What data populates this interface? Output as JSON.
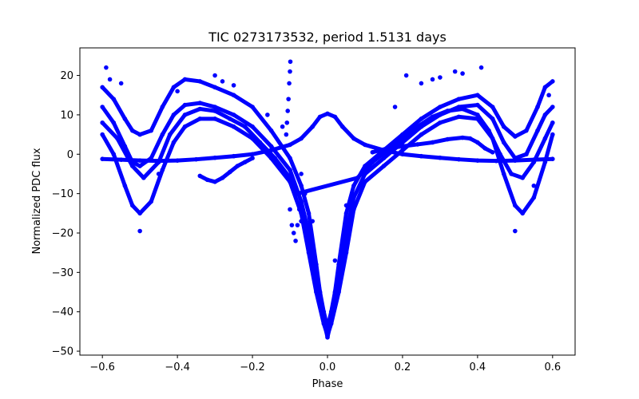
{
  "chart_data": {
    "type": "scatter",
    "title": "TIC 0273173532, period 1.5131 days",
    "xlabel": "Phase",
    "ylabel": "Normalized PDC flux",
    "xlim": [
      -0.66,
      0.66
    ],
    "ylim": [
      -51,
      27
    ],
    "xticks": [
      -0.6,
      -0.4,
      -0.2,
      0.0,
      0.2,
      0.4,
      0.6
    ],
    "xtick_labels": [
      "−0.6",
      "−0.4",
      "−0.2",
      "0.0",
      "0.2",
      "0.4",
      "0.6"
    ],
    "yticks": [
      -50,
      -40,
      -30,
      -20,
      -10,
      0,
      10,
      20
    ],
    "ytick_labels": [
      "−50",
      "−40",
      "−30",
      "−20",
      "−10",
      "0",
      "10",
      "20"
    ],
    "grid": false,
    "marker_color": "#0000ff",
    "series": [
      {
        "points": [
          [
            -0.6,
            -1.2
          ],
          [
            -0.55,
            -1.4
          ],
          [
            -0.5,
            -1.6
          ],
          [
            -0.45,
            -1.7
          ],
          [
            -0.4,
            -1.6
          ],
          [
            -0.35,
            -1.3
          ],
          [
            -0.3,
            -0.9
          ],
          [
            -0.25,
            -0.5
          ],
          [
            -0.2,
            0.0
          ],
          [
            -0.15,
            1.0
          ],
          [
            -0.1,
            2.4
          ],
          [
            -0.07,
            4.0
          ],
          [
            -0.04,
            7.0
          ],
          [
            -0.02,
            9.5
          ],
          [
            0.0,
            10.3
          ],
          [
            0.02,
            9.5
          ],
          [
            0.04,
            7.0
          ],
          [
            0.07,
            4.0
          ],
          [
            0.1,
            2.4
          ],
          [
            0.15,
            1.0
          ],
          [
            0.2,
            0.0
          ],
          [
            0.25,
            -0.5
          ],
          [
            0.3,
            -0.9
          ],
          [
            0.35,
            -1.3
          ],
          [
            0.4,
            -1.6
          ],
          [
            0.45,
            -1.7
          ],
          [
            0.5,
            -1.6
          ],
          [
            0.55,
            -1.4
          ],
          [
            0.6,
            -1.2
          ]
        ]
      },
      {
        "points": [
          [
            -0.6,
            17.0
          ],
          [
            -0.57,
            14.0
          ],
          [
            -0.54,
            9.0
          ],
          [
            -0.52,
            6.0
          ],
          [
            -0.5,
            5.0
          ],
          [
            -0.47,
            6.0
          ],
          [
            -0.44,
            12.0
          ],
          [
            -0.41,
            17.0
          ],
          [
            -0.38,
            19.0
          ],
          [
            -0.34,
            18.5
          ],
          [
            -0.3,
            17.0
          ],
          [
            -0.25,
            15.0
          ],
          [
            -0.2,
            12.0
          ],
          [
            -0.15,
            6.0
          ],
          [
            -0.1,
            -1.0
          ],
          [
            -0.07,
            -8.0
          ],
          [
            -0.05,
            -15.0
          ],
          [
            -0.03,
            -28.0
          ],
          [
            -0.02,
            -35.0
          ],
          [
            -0.01,
            -42.0
          ],
          [
            0.0,
            -46.5
          ],
          [
            0.01,
            -42.0
          ],
          [
            0.02,
            -35.0
          ],
          [
            0.03,
            -28.0
          ],
          [
            0.05,
            -15.0
          ],
          [
            0.07,
            -8.0
          ],
          [
            0.1,
            -3.0
          ],
          [
            0.15,
            1.0
          ],
          [
            0.2,
            5.0
          ],
          [
            0.25,
            9.0
          ],
          [
            0.3,
            12.0
          ],
          [
            0.35,
            14.0
          ],
          [
            0.4,
            15.0
          ],
          [
            0.44,
            12.0
          ],
          [
            0.47,
            7.0
          ],
          [
            0.5,
            4.5
          ],
          [
            0.53,
            6.0
          ],
          [
            0.56,
            12.0
          ],
          [
            0.58,
            17.0
          ],
          [
            0.6,
            18.5
          ]
        ]
      },
      {
        "points": [
          [
            -0.6,
            12.0
          ],
          [
            -0.57,
            8.0
          ],
          [
            -0.54,
            2.0
          ],
          [
            -0.52,
            -2.0
          ],
          [
            -0.5,
            -3.0
          ],
          [
            -0.47,
            -1.0
          ],
          [
            -0.44,
            5.0
          ],
          [
            -0.41,
            10.0
          ],
          [
            -0.38,
            12.5
          ],
          [
            -0.34,
            13.0
          ],
          [
            -0.3,
            12.0
          ],
          [
            -0.25,
            10.0
          ],
          [
            -0.2,
            7.0
          ],
          [
            -0.15,
            2.0
          ],
          [
            -0.1,
            -4.0
          ],
          [
            -0.07,
            -12.0
          ],
          [
            -0.05,
            -20.0
          ],
          [
            -0.03,
            -30.0
          ],
          [
            -0.01,
            -40.0
          ],
          [
            0.0,
            -44.0
          ],
          [
            0.01,
            -40.0
          ],
          [
            0.03,
            -30.0
          ],
          [
            0.05,
            -20.0
          ],
          [
            0.07,
            -11.0
          ],
          [
            0.1,
            -5.0
          ],
          [
            0.15,
            -1.0
          ],
          [
            0.2,
            3.0
          ],
          [
            0.25,
            7.0
          ],
          [
            0.3,
            10.0
          ],
          [
            0.35,
            12.0
          ],
          [
            0.4,
            12.5
          ],
          [
            0.44,
            9.0
          ],
          [
            0.47,
            3.0
          ],
          [
            0.5,
            -1.0
          ],
          [
            0.53,
            0.0
          ],
          [
            0.56,
            6.0
          ],
          [
            0.58,
            10.0
          ],
          [
            0.6,
            12.0
          ]
        ]
      },
      {
        "points": [
          [
            -0.6,
            5.0
          ],
          [
            -0.57,
            0.0
          ],
          [
            -0.54,
            -8.0
          ],
          [
            -0.52,
            -13.0
          ],
          [
            -0.5,
            -15.0
          ],
          [
            -0.47,
            -12.0
          ],
          [
            -0.44,
            -4.0
          ],
          [
            -0.41,
            3.0
          ],
          [
            -0.38,
            7.0
          ],
          [
            -0.34,
            9.0
          ],
          [
            -0.3,
            9.0
          ],
          [
            -0.25,
            7.0
          ],
          [
            -0.2,
            4.0
          ],
          [
            -0.15,
            -1.0
          ],
          [
            -0.1,
            -7.0
          ],
          [
            -0.07,
            -15.0
          ],
          [
            -0.05,
            -25.0
          ],
          [
            -0.03,
            -35.0
          ],
          [
            -0.01,
            -43.0
          ],
          [
            0.0,
            -46.0
          ],
          [
            0.01,
            -43.0
          ],
          [
            0.03,
            -35.0
          ],
          [
            0.05,
            -25.0
          ],
          [
            0.07,
            -14.0
          ],
          [
            0.1,
            -7.0
          ],
          [
            0.15,
            -3.0
          ],
          [
            0.2,
            1.0
          ],
          [
            0.25,
            5.0
          ],
          [
            0.3,
            8.0
          ],
          [
            0.35,
            9.5
          ],
          [
            0.4,
            9.0
          ],
          [
            0.44,
            4.0
          ],
          [
            0.47,
            -5.0
          ],
          [
            0.5,
            -13.0
          ],
          [
            0.52,
            -15.0
          ],
          [
            0.55,
            -11.0
          ],
          [
            0.58,
            -2.0
          ],
          [
            0.6,
            5.0
          ]
        ]
      },
      {
        "points": [
          [
            -0.6,
            8.0
          ],
          [
            -0.56,
            4.0
          ],
          [
            -0.52,
            -3.0
          ],
          [
            -0.49,
            -6.0
          ],
          [
            -0.45,
            -2.0
          ],
          [
            -0.42,
            5.0
          ],
          [
            -0.38,
            10.0
          ],
          [
            -0.34,
            11.5
          ],
          [
            -0.3,
            11.0
          ],
          [
            -0.26,
            9.0
          ],
          [
            -0.22,
            7.0
          ],
          [
            -0.18,
            3.0
          ],
          [
            -0.14,
            -1.0
          ],
          [
            -0.1,
            -6.0
          ],
          [
            -0.08,
            -10.0
          ],
          [
            0.08,
            -6.0
          ],
          [
            0.12,
            -2.0
          ],
          [
            0.16,
            1.0
          ],
          [
            0.2,
            4.0
          ],
          [
            0.24,
            7.0
          ],
          [
            0.28,
            9.5
          ],
          [
            0.32,
            11.0
          ],
          [
            0.36,
            11.5
          ],
          [
            0.4,
            10.0
          ],
          [
            0.43,
            6.0
          ],
          [
            0.46,
            0.0
          ],
          [
            0.49,
            -5.0
          ],
          [
            0.52,
            -6.0
          ],
          [
            0.55,
            -2.0
          ],
          [
            0.58,
            4.0
          ],
          [
            0.6,
            8.0
          ]
        ]
      },
      {
        "points": [
          [
            -0.34,
            -5.5
          ],
          [
            -0.32,
            -6.5
          ],
          [
            -0.3,
            -7.0
          ],
          [
            -0.28,
            -6.0
          ],
          [
            -0.26,
            -4.5
          ],
          [
            -0.24,
            -3.0
          ],
          [
            -0.22,
            -2.0
          ],
          [
            -0.2,
            -1.0
          ]
        ]
      },
      {
        "points": [
          [
            0.12,
            0.5
          ],
          [
            0.16,
            1.5
          ],
          [
            0.2,
            2.0
          ],
          [
            0.24,
            2.5
          ],
          [
            0.28,
            3.0
          ],
          [
            0.32,
            3.8
          ],
          [
            0.36,
            4.2
          ],
          [
            0.38,
            4.0
          ],
          [
            0.4,
            3.0
          ],
          [
            0.42,
            1.5
          ],
          [
            0.44,
            0.5
          ]
        ]
      },
      {
        "points": [
          [
            -0.11,
            5.0
          ],
          [
            -0.108,
            8.0
          ],
          [
            -0.106,
            11.0
          ],
          [
            -0.104,
            14.0
          ],
          [
            -0.102,
            18.0
          ],
          [
            -0.1,
            21.0
          ],
          [
            -0.099,
            23.5
          ],
          [
            -0.1,
            -14.0
          ],
          [
            -0.095,
            -18.0
          ],
          [
            -0.09,
            -20.0
          ],
          [
            -0.085,
            -22.0
          ],
          [
            -0.08,
            -18.0
          ],
          [
            -0.075,
            -14.0
          ],
          [
            -0.07,
            -17.0
          ]
        ]
      },
      {
        "points": [
          [
            -0.59,
            22.0
          ],
          [
            -0.58,
            19.0
          ],
          [
            -0.55,
            18.0
          ],
          [
            -0.5,
            -19.5
          ],
          [
            -0.45,
            -5.0
          ],
          [
            -0.4,
            16.0
          ],
          [
            -0.3,
            20.0
          ],
          [
            -0.28,
            18.5
          ],
          [
            -0.25,
            17.5
          ],
          [
            -0.16,
            10.0
          ],
          [
            -0.12,
            7.0
          ],
          [
            -0.07,
            -5.0
          ],
          [
            -0.06,
            -10.0
          ],
          [
            -0.04,
            -17.0
          ],
          [
            0.02,
            -27.0
          ],
          [
            0.05,
            -13.0
          ],
          [
            0.18,
            12.0
          ],
          [
            0.21,
            20.0
          ],
          [
            0.25,
            18.0
          ],
          [
            0.28,
            19.0
          ],
          [
            0.3,
            19.5
          ],
          [
            0.34,
            21.0
          ],
          [
            0.36,
            20.5
          ],
          [
            0.41,
            22.0
          ],
          [
            0.5,
            -19.5
          ],
          [
            0.55,
            -8.0
          ],
          [
            0.59,
            15.0
          ]
        ]
      }
    ]
  }
}
